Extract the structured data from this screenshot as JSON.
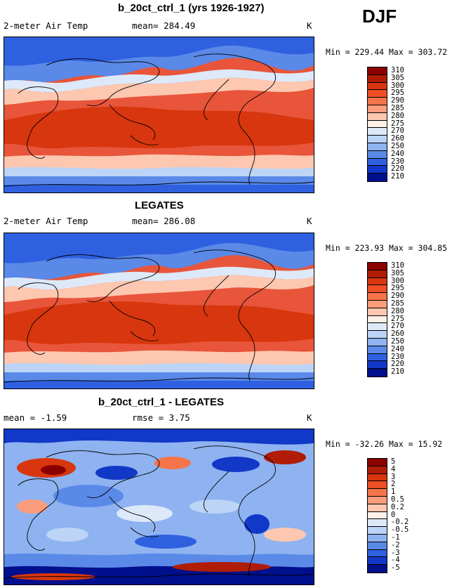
{
  "season": "DJF",
  "panels": [
    {
      "title": "b_20ct_ctrl_1 (yrs 1926-1927)",
      "left_label": "2-meter Air Temp",
      "mid_label": "mean= 284.49",
      "unit": "K",
      "minmax": "Min = 229.44 Max = 303.72",
      "levels": [
        "310",
        "305",
        "300",
        "295",
        "290",
        "285",
        "280",
        "275",
        "270",
        "260",
        "250",
        "240",
        "230",
        "220",
        "210"
      ],
      "palette": [
        "#8b0000",
        "#b01c06",
        "#d8360e",
        "#ee4f24",
        "#f7744a",
        "#fb9c7c",
        "#fdc7b0",
        "#fdf0e6",
        "#dde9f8",
        "#bcd4f5",
        "#8eb3f0",
        "#5a89e8",
        "#2f60e0",
        "#1238c8",
        "#000f8c"
      ]
    },
    {
      "title": "LEGATES",
      "left_label": "2-meter Air Temp",
      "mid_label": "mean= 286.08",
      "unit": "K",
      "minmax": "Min = 223.93 Max = 304.85",
      "levels": [
        "310",
        "305",
        "300",
        "295",
        "290",
        "285",
        "280",
        "275",
        "270",
        "260",
        "250",
        "240",
        "230",
        "220",
        "210"
      ],
      "palette": [
        "#8b0000",
        "#b01c06",
        "#d8360e",
        "#ee4f24",
        "#f7744a",
        "#fb9c7c",
        "#fdc7b0",
        "#fdf0e6",
        "#dde9f8",
        "#bcd4f5",
        "#8eb3f0",
        "#5a89e8",
        "#2f60e0",
        "#1238c8",
        "#000f8c"
      ]
    },
    {
      "title": "b_20ct_ctrl_1 - LEGATES",
      "left_label": "mean =  -1.59",
      "mid_label": "rmse =   3.75",
      "unit": "K",
      "minmax": "Min = -32.26 Max =  15.92",
      "levels": [
        "5",
        "4",
        "3",
        "2",
        "1",
        "0.5",
        "0.2",
        "0",
        "-0.2",
        "-0.5",
        "-1",
        "-2",
        "-3",
        "-4",
        "-5"
      ],
      "palette": [
        "#8b0000",
        "#b01c06",
        "#d8360e",
        "#ee4f24",
        "#f7744a",
        "#fb9c7c",
        "#fdc7b0",
        "#fdf0e6",
        "#dde9f8",
        "#bcd4f5",
        "#8eb3f0",
        "#5a89e8",
        "#2f60e0",
        "#1238c8",
        "#000f8c"
      ]
    }
  ]
}
